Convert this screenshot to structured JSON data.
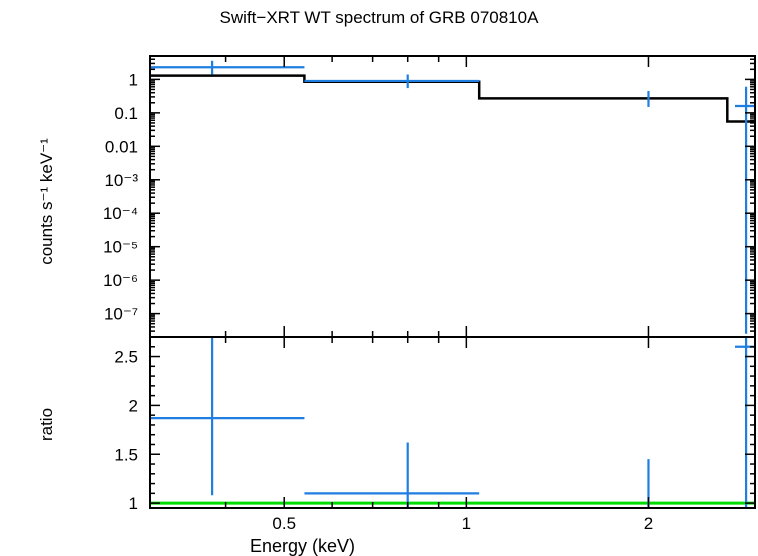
{
  "chart_data": [
    {
      "type": "line",
      "title": "Swift−XRT WT spectrum of GRB 070810A",
      "panel": "spectrum",
      "xlabel": "Energy (keV)",
      "ylabel": "counts s⁻¹ keV⁻¹",
      "xscale": "log",
      "yscale": "log",
      "xlim": [
        0.3,
        3.0
      ],
      "ylim": [
        2e-08,
        5
      ],
      "y_ticks": [
        {
          "value": 1,
          "label": "1"
        },
        {
          "value": 0.1,
          "label": "0.1"
        },
        {
          "value": 0.01,
          "label": "0.01"
        },
        {
          "value": 0.001,
          "label": "10⁻³"
        },
        {
          "value": 0.0001,
          "label": "10⁻⁴"
        },
        {
          "value": 1e-05,
          "label": "10⁻⁵"
        },
        {
          "value": 1e-06,
          "label": "10⁻⁶"
        },
        {
          "value": 1e-07,
          "label": "10⁻⁷"
        }
      ],
      "series": [
        {
          "kind": "data",
          "color": "#1f7fe0",
          "points": [
            {
              "x": 0.38,
              "xlo": 0.3,
              "xhi": 0.54,
              "y": 2.3,
              "ylo": 1.4,
              "yhi": 3.6
            },
            {
              "x": 0.8,
              "xlo": 0.54,
              "xhi": 1.05,
              "y": 0.9,
              "ylo": 0.55,
              "yhi": 1.4
            },
            {
              "x": 2.0,
              "xlo": 2.0,
              "xhi": 2.0,
              "y": 0.27,
              "ylo": 0.15,
              "yhi": 0.45
            },
            {
              "x": 2.9,
              "xlo": 2.78,
              "xhi": 3.0,
              "y": 0.16,
              "ylo": 2.5e-08,
              "yhi": 0.6
            }
          ]
        },
        {
          "kind": "model",
          "color": "#000000",
          "steps": [
            {
              "xlo": 0.3,
              "xhi": 0.54,
              "y": 1.3
            },
            {
              "xlo": 0.54,
              "xhi": 1.05,
              "y": 0.85
            },
            {
              "xlo": 1.05,
              "xhi": 2.7,
              "y": 0.27
            },
            {
              "xlo": 2.7,
              "xhi": 3.0,
              "y": 0.055
            }
          ]
        }
      ]
    },
    {
      "type": "scatter",
      "panel": "ratio",
      "xlabel": "Energy (keV)",
      "ylabel": "ratio",
      "xscale": "log",
      "xlim": [
        0.3,
        3.0
      ],
      "ylim": [
        0.95,
        2.7
      ],
      "x_ticks": [
        {
          "value": 0.5,
          "label": "0.5"
        },
        {
          "value": 1,
          "label": "1"
        },
        {
          "value": 2,
          "label": "2"
        }
      ],
      "y_ticks": [
        {
          "value": 1,
          "label": "1"
        },
        {
          "value": 1.5,
          "label": "1.5"
        },
        {
          "value": 2,
          "label": "2"
        },
        {
          "value": 2.5,
          "label": "2.5"
        }
      ],
      "reference_line": {
        "y": 1,
        "color": "#00dd00"
      },
      "series": [
        {
          "kind": "ratio",
          "color": "#1f7fe0",
          "points": [
            {
              "x": 0.38,
              "xlo": 0.3,
              "xhi": 0.54,
              "y": 1.87,
              "ylo": 1.08,
              "yhi": 2.7
            },
            {
              "x": 0.8,
              "xlo": 0.54,
              "xhi": 1.05,
              "y": 1.1,
              "ylo": 0.95,
              "yhi": 1.62
            },
            {
              "x": 2.0,
              "xlo": 2.0,
              "xhi": 2.0,
              "y": 1.0,
              "ylo": 0.95,
              "yhi": 1.45
            },
            {
              "x": 2.9,
              "xlo": 2.78,
              "xhi": 3.0,
              "y": 2.6,
              "ylo": 0.95,
              "yhi": 2.7
            }
          ]
        }
      ]
    }
  ]
}
